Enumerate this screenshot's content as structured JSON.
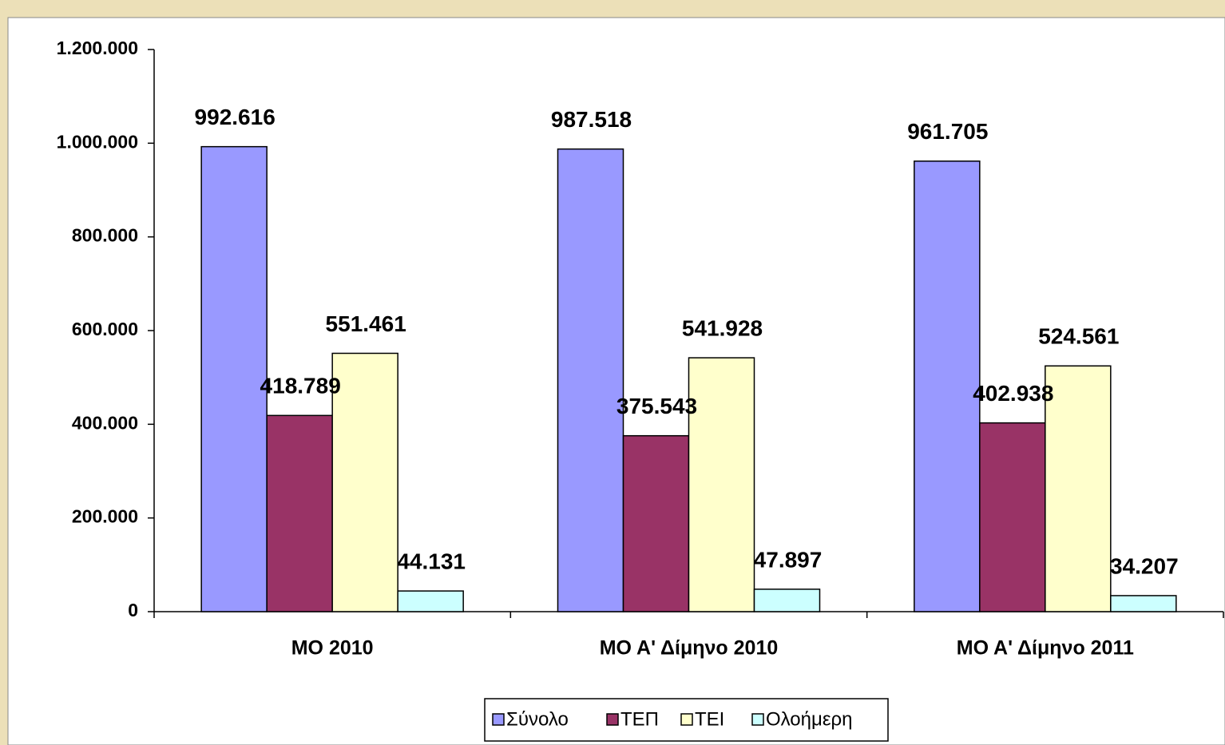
{
  "chart_data": {
    "type": "bar",
    "categories": [
      "ΜΟ 2010",
      "ΜΟ Α' Δίμηνο 2010",
      "ΜΟ Α' Δίμηνο 2011"
    ],
    "series": [
      {
        "name": "Σύνολο",
        "color": "#9999ff",
        "values": [
          992616,
          987518,
          961705
        ],
        "value_labels": [
          "992.616",
          "987.518",
          "961.705"
        ]
      },
      {
        "name": "ΤΕΠ",
        "color": "#993366",
        "values": [
          418789,
          375543,
          402938
        ],
        "value_labels": [
          "418.789",
          "375.543",
          "402.938"
        ]
      },
      {
        "name": "ΤΕΙ",
        "color": "#ffffcc",
        "values": [
          551461,
          541928,
          524561
        ],
        "value_labels": [
          "551.461",
          "541.928",
          "524.561"
        ]
      },
      {
        "name": "Ολοήμερη",
        "color": "#ccffff",
        "values": [
          44131,
          47897,
          34207
        ],
        "value_labels": [
          "44.131",
          "47.897",
          "34.207"
        ]
      }
    ],
    "ylim": [
      0,
      1200000
    ],
    "yticks": [
      0,
      {
        "value": 200000,
        "label": "200.000"
      },
      {
        "value": 400000,
        "label": "400.000"
      },
      {
        "value": 600000,
        "label": "600.000"
      },
      {
        "value": 800000,
        "label": "800.000"
      },
      {
        "value": 1000000,
        "label": "1.000.000"
      },
      {
        "value": 1200000,
        "label": "1.200.000"
      }
    ],
    "legend": "bottom"
  }
}
